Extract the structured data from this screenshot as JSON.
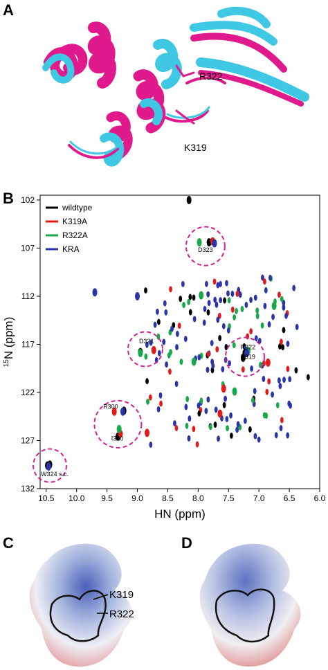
{
  "panels": {
    "a": {
      "label": "A",
      "annotations": [
        "R322",
        "K319"
      ]
    },
    "b": {
      "label": "B"
    },
    "c": {
      "label": "C",
      "annotations": [
        "K319",
        "R322"
      ]
    },
    "d": {
      "label": "D"
    }
  },
  "colors": {
    "cyan_structure": "#3fc8e4",
    "magenta_structure": "#e0198c",
    "wildtype": "#000000",
    "K319A": "#e31a1c",
    "R322A": "#1aa84a",
    "KRA": "#2b35a8",
    "circle": "#d4208f",
    "surface_blue": "#6f86c9",
    "surface_red": "#e49a9a"
  },
  "chart_data": {
    "type": "scatter",
    "xlabel": "HN (ppm)",
    "ylabel": "15N (ppm)",
    "ylabel_super": "15",
    "ylabel_rest": "N (ppm)",
    "xlim": [
      10.6,
      6.0
    ],
    "ylim": [
      101.5,
      132
    ],
    "x_reversed": true,
    "y_reversed": true,
    "xticks": [
      "10.5",
      "10.0",
      "9.5",
      "9.0",
      "8.5",
      "8.0",
      "7.5",
      "7.0",
      "6.5",
      "6.0"
    ],
    "yticks": [
      "102",
      "107",
      "112",
      "117",
      "122",
      "127",
      "132"
    ],
    "legend": {
      "position": "top-left",
      "entries": [
        "wildtype",
        "K319A",
        "R322A",
        "KRA"
      ]
    },
    "series": [
      {
        "name": "wildtype",
        "points": [
          [
            10.48,
            129.6
          ],
          [
            10.44,
            129.5
          ],
          [
            9.32,
            126.6
          ],
          [
            9.22,
            123.9
          ],
          [
            8.95,
            117.8
          ],
          [
            7.82,
            106.4
          ],
          [
            7.23,
            117.9
          ],
          [
            7.26,
            118.4
          ],
          [
            8.15,
            102.0
          ]
        ]
      },
      {
        "name": "K319A",
        "points": [
          [
            9.38,
            124.0
          ],
          [
            9.28,
            126.3
          ],
          [
            8.84,
            126.2
          ],
          [
            8.73,
            117.6
          ],
          [
            7.76,
            106.3
          ],
          [
            6.85,
            118.9
          ],
          [
            7.58,
            121.6
          ],
          [
            7.64,
            124.2
          ]
        ]
      },
      {
        "name": "R322A",
        "points": [
          [
            9.3,
            125.8
          ],
          [
            8.95,
            117.9
          ],
          [
            7.98,
            106.4
          ],
          [
            7.18,
            117.7
          ],
          [
            7.95,
            111.9
          ],
          [
            7.4,
            121.9
          ],
          [
            8.07,
            118.8
          ],
          [
            6.75,
            113.0
          ]
        ]
      },
      {
        "name": "KRA",
        "points": [
          [
            10.46,
            129.7
          ],
          [
            9.24,
            124.0
          ],
          [
            9.7,
            111.6
          ],
          [
            9.0,
            112.0
          ],
          [
            7.73,
            106.5
          ],
          [
            7.2,
            117.9
          ]
        ]
      }
    ],
    "labels": [
      {
        "text": "D323",
        "x": 7.88,
        "y": 107.4
      },
      {
        "text": "D321",
        "x": 8.85,
        "y": 116.9
      },
      {
        "text": "R322",
        "x": 7.18,
        "y": 117.5
      },
      {
        "text": "K319",
        "x": 7.18,
        "y": 118.5
      },
      {
        "text": "R300",
        "x": 9.44,
        "y": 123.7
      },
      {
        "text": "I320",
        "x": 9.33,
        "y": 127.0
      },
      {
        "text": "W324 s.c.",
        "x": 10.36,
        "y": 130.7
      }
    ]
  }
}
